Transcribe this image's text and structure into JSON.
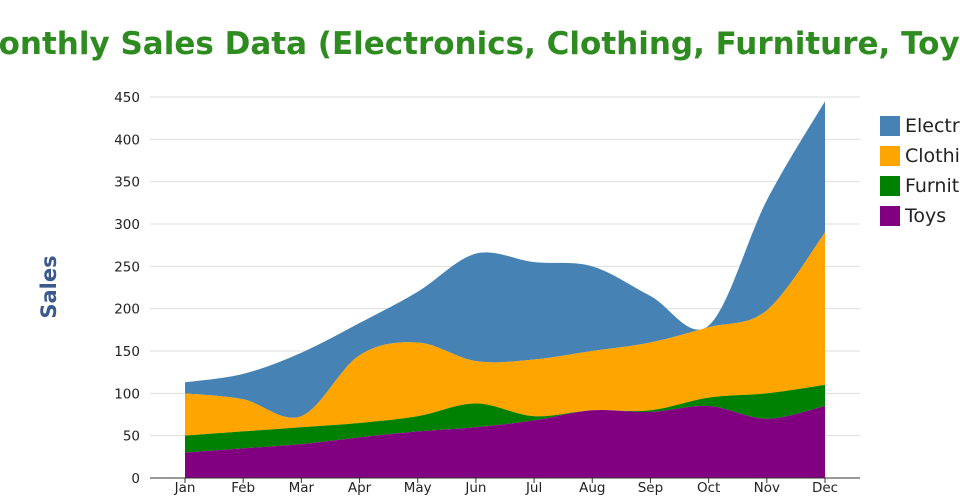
{
  "colors": {
    "title": "#2e8b1f",
    "ylabel": "#3a5a8c"
  },
  "chart_data": {
    "type": "area",
    "stacked": true,
    "title": "Monthly Sales Data (Electronics, Clothing, Furniture, Toys)",
    "xlabel": "",
    "ylabel": "Sales",
    "ylim": [
      0,
      450
    ],
    "yticks": [
      0,
      50,
      100,
      150,
      200,
      250,
      300,
      350,
      400,
      450
    ],
    "grid": true,
    "legend_position": "right",
    "categories": [
      "Jan",
      "Feb",
      "Mar",
      "Apr",
      "May",
      "Jun",
      "Jul",
      "Aug",
      "Sep",
      "Oct",
      "Nov",
      "Dec"
    ],
    "series": [
      {
        "name": "Toys",
        "color": "#800080",
        "values": [
          30,
          35,
          40,
          48,
          55,
          60,
          68,
          80,
          78,
          85,
          70,
          85
        ]
      },
      {
        "name": "Furniture",
        "color": "#008000",
        "values": [
          20,
          20,
          20,
          17,
          18,
          28,
          5,
          0,
          2,
          10,
          30,
          25
        ]
      },
      {
        "name": "Clothing",
        "color": "#ffa500",
        "values": [
          50,
          38,
          13,
          80,
          87,
          50,
          67,
          70,
          80,
          83,
          98,
          180
        ]
      },
      {
        "name": "Electronics",
        "color": "#4682b4",
        "values": [
          13,
          30,
          75,
          38,
          60,
          127,
          115,
          100,
          55,
          2,
          130,
          155
        ]
      }
    ],
    "legend": [
      "Electronics",
      "Clothing",
      "Furniture",
      "Toys"
    ]
  }
}
